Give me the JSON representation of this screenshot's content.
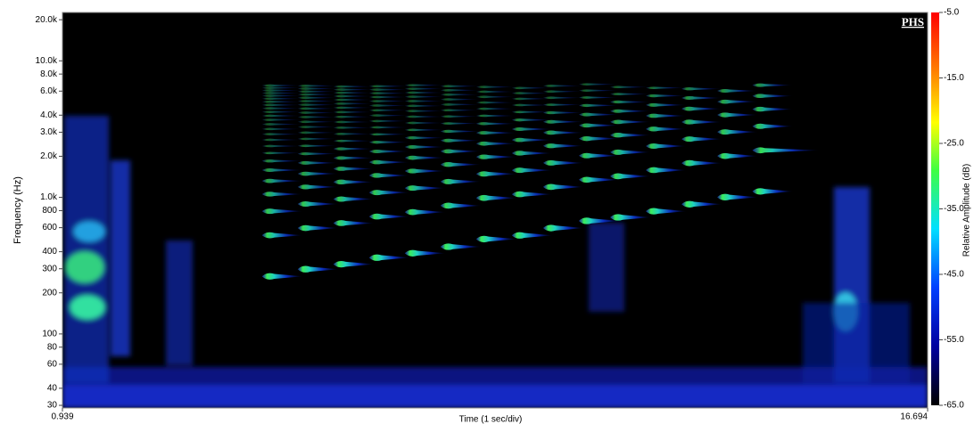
{
  "chart_data": {
    "type": "spectrogram",
    "badge": "PHS",
    "x_label": "Time (1 sec/div)",
    "y_label": "Frequency (Hz)",
    "colorbar_label": "Relative Amplitude (dB)",
    "xlim": [
      0.939,
      16.694
    ],
    "xticks": [
      0.939,
      16.694
    ],
    "ylim": [
      28.7,
      22600
    ],
    "log_y": true,
    "yticks": [
      {
        "value": 20000,
        "label": "20.0k"
      },
      {
        "value": 10000,
        "label": "10.0k"
      },
      {
        "value": 8000,
        "label": "8.0k"
      },
      {
        "value": 6000,
        "label": "6.0k"
      },
      {
        "value": 4000,
        "label": "4.0k"
      },
      {
        "value": 3000,
        "label": "3.0k"
      },
      {
        "value": 2000,
        "label": "2.0k"
      },
      {
        "value": 1000,
        "label": "1.0k"
      },
      800,
      600,
      400,
      300,
      200,
      100,
      80,
      60,
      40,
      30
    ],
    "clim": [
      -65,
      -5
    ],
    "cticks": [
      {
        "value": -5,
        "label": "-5.0"
      },
      {
        "value": -15,
        "label": "-15.0"
      },
      {
        "value": -25,
        "label": "-25.0"
      },
      {
        "value": -35,
        "label": "-35.0"
      },
      {
        "value": -45,
        "label": "-45.0"
      },
      {
        "value": -55,
        "label": "-55.0"
      },
      {
        "value": -65,
        "label": "-65.0"
      }
    ],
    "notes": [
      {
        "t": 4.67,
        "f0": 264
      },
      {
        "t": 5.32,
        "f0": 298
      },
      {
        "t": 5.97,
        "f0": 324
      },
      {
        "t": 6.62,
        "f0": 362
      },
      {
        "t": 7.27,
        "f0": 390
      },
      {
        "t": 7.92,
        "f0": 435
      },
      {
        "t": 8.57,
        "f0": 495
      },
      {
        "t": 9.22,
        "f0": 527
      },
      {
        "t": 9.79,
        "f0": 596
      },
      {
        "t": 10.44,
        "f0": 673
      },
      {
        "t": 11.01,
        "f0": 714
      },
      {
        "t": 11.66,
        "f0": 792
      },
      {
        "t": 12.31,
        "f0": 891
      },
      {
        "t": 12.96,
        "f0": 1004
      },
      {
        "t": 13.6,
        "f0": 1106
      }
    ]
  }
}
